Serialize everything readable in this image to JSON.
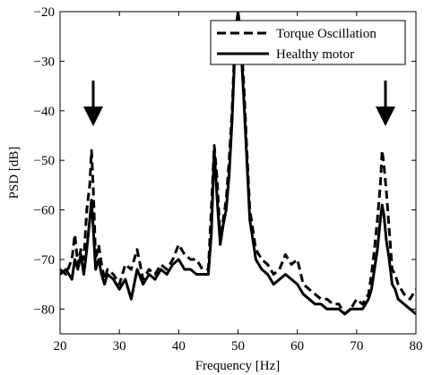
{
  "chart_data": {
    "type": "line",
    "title": "",
    "xlabel": "Frequency [Hz]",
    "ylabel": "PSD [dB]",
    "xlim": [
      20,
      80
    ],
    "ylim": [
      -85,
      -20
    ],
    "xticks": [
      20,
      30,
      40,
      50,
      60,
      70,
      80
    ],
    "yticks": [
      -20,
      -30,
      -40,
      -50,
      -60,
      -70,
      -80
    ],
    "xtick_labels": [
      "20",
      "30",
      "40",
      "50",
      "60",
      "70",
      "80"
    ],
    "ytick_labels": [
      "−20",
      "−30",
      "−40",
      "−50",
      "−60",
      "−70",
      "−80"
    ],
    "legend_position": "top-right",
    "grid": false,
    "series": [
      {
        "name": "Torque Oscillation",
        "style": "dashed",
        "color": "#000000",
        "x": [
          20,
          21,
          22,
          22.5,
          23,
          23.5,
          24,
          24.5,
          25,
          25.3,
          25.6,
          26,
          26.5,
          27,
          27.5,
          28,
          29,
          30,
          31,
          32,
          33,
          34,
          35,
          36,
          37,
          38,
          39,
          40,
          40.5,
          41,
          42,
          43,
          44,
          45,
          45.5,
          46,
          46.5,
          47,
          47.5,
          48,
          48.5,
          49,
          49.5,
          50,
          50.5,
          51,
          51.5,
          52,
          53,
          54,
          55,
          56,
          57,
          58,
          59,
          60,
          61,
          62,
          63,
          64,
          65,
          66,
          67,
          68,
          69,
          70,
          71,
          72,
          72.5,
          73,
          73.5,
          74,
          74.3,
          74.6,
          75,
          75.5,
          76,
          76.5,
          77,
          78,
          79,
          80
        ],
        "y": [
          -72,
          -73,
          -70,
          -65,
          -71,
          -68,
          -70,
          -60,
          -55,
          -48,
          -56,
          -70,
          -67,
          -71,
          -74,
          -72,
          -73,
          -75,
          -71,
          -72,
          -68,
          -74,
          -72,
          -73,
          -71,
          -72,
          -70,
          -67,
          -68,
          -69,
          -70,
          -70,
          -72,
          -72,
          -60,
          -47,
          -54,
          -66,
          -62,
          -58,
          -50,
          -40,
          -25,
          -20,
          -25,
          -35,
          -48,
          -60,
          -68,
          -70,
          -71,
          -73,
          -72,
          -69,
          -71,
          -70,
          -75,
          -76,
          -77,
          -78,
          -78,
          -79,
          -79,
          -81,
          -80,
          -78,
          -79,
          -77,
          -73,
          -68,
          -62,
          -55,
          -48,
          -51,
          -56,
          -64,
          -72,
          -73,
          -75,
          -77,
          -78,
          -76
        ]
      },
      {
        "name": "Healthy motor",
        "style": "solid",
        "color": "#000000",
        "x": [
          20,
          21,
          22,
          22.5,
          23,
          23.5,
          24,
          24.5,
          25,
          25.3,
          25.6,
          26,
          26.5,
          27,
          27.5,
          28,
          29,
          30,
          31,
          32,
          33,
          34,
          35,
          36,
          37,
          38,
          39,
          40,
          40.5,
          41,
          42,
          43,
          44,
          45,
          45.5,
          46,
          46.5,
          47,
          47.5,
          48,
          48.5,
          49,
          49.5,
          50,
          50.5,
          51,
          51.5,
          52,
          53,
          54,
          55,
          56,
          57,
          58,
          59,
          60,
          61,
          62,
          63,
          64,
          65,
          66,
          67,
          68,
          69,
          70,
          71,
          72,
          72.5,
          73,
          73.5,
          74,
          74.3,
          74.6,
          75,
          75.5,
          76,
          76.5,
          77,
          78,
          79,
          80
        ],
        "y": [
          -73,
          -72,
          -74,
          -70,
          -72,
          -69,
          -73,
          -68,
          -62,
          -58,
          -64,
          -72,
          -70,
          -73,
          -75,
          -73,
          -74,
          -76,
          -74,
          -78,
          -72,
          -75,
          -73,
          -74,
          -72,
          -73,
          -71,
          -70,
          -71,
          -72,
          -72,
          -73,
          -73,
          -73,
          -65,
          -48,
          -58,
          -67,
          -63,
          -60,
          -53,
          -42,
          -27,
          -20,
          -27,
          -38,
          -50,
          -62,
          -70,
          -72,
          -73,
          -75,
          -74,
          -73,
          -74,
          -75,
          -77,
          -78,
          -79,
          -79,
          -80,
          -80,
          -80,
          -81,
          -80,
          -80,
          -80,
          -78,
          -76,
          -72,
          -68,
          -62,
          -59,
          -61,
          -66,
          -70,
          -75,
          -76,
          -78,
          -79,
          -80,
          -81
        ]
      }
    ]
  }
}
